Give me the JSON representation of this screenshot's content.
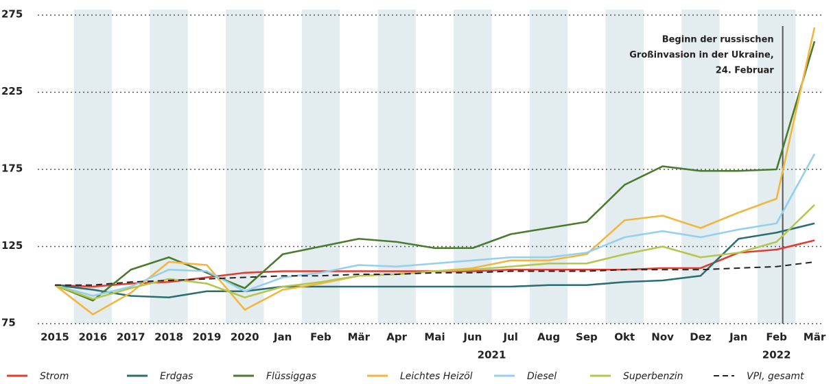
{
  "chart_data": {
    "type": "line",
    "categories": [
      "2015",
      "2016",
      "2017",
      "2018",
      "2019",
      "2020",
      "Jan",
      "Feb",
      "Mär",
      "Apr",
      "Mai",
      "Jun",
      "Jul",
      "Aug",
      "Sep",
      "Okt",
      "Nov",
      "Dez",
      "Jan",
      "Feb",
      "Mär"
    ],
    "year_labels": [
      "2021",
      "2022"
    ],
    "ylim": [
      75,
      275
    ],
    "yticks": [
      75,
      125,
      175,
      225,
      275
    ],
    "grid": true,
    "annotation": {
      "category": "Feb",
      "lines": [
        "Beginn der russischen",
        "Großinvasion in der Ukraine,",
        "24. Februar"
      ]
    },
    "series": [
      {
        "name": "Strom",
        "color": "#e03c31",
        "dashed": false,
        "values": [
          100,
          99,
          101,
          102,
          105,
          108,
          109,
          109,
          109,
          109,
          109,
          109,
          110,
          110,
          110,
          110,
          111,
          111,
          121,
          123,
          129
        ]
      },
      {
        "name": "Erdgas",
        "color": "#2a6e72",
        "dashed": false,
        "values": [
          100,
          97,
          93,
          92,
          96,
          96,
          99,
          99,
          99,
          99,
          99,
          99,
          99,
          100,
          100,
          102,
          103,
          106,
          130,
          134,
          140
        ]
      },
      {
        "name": "Flüssiggas",
        "color": "#4a7a2e",
        "dashed": false,
        "values": [
          100,
          90,
          110,
          118,
          108,
          98,
          120,
          125,
          130,
          128,
          124,
          124,
          133,
          137,
          141,
          165,
          177,
          174,
          174,
          175,
          258
        ]
      },
      {
        "name": "Leichtes Heizöl",
        "color": "#f2b63c",
        "dashed": false,
        "values": [
          100,
          81,
          95,
          115,
          113,
          84,
          97,
          101,
          106,
          107,
          109,
          111,
          116,
          116,
          120,
          142,
          145,
          137,
          147,
          156,
          267
        ]
      },
      {
        "name": "Diesel",
        "color": "#94cfee",
        "dashed": false,
        "values": [
          100,
          93,
          99,
          110,
          109,
          96,
          105,
          108,
          113,
          112,
          114,
          116,
          118,
          118,
          121,
          131,
          135,
          131,
          136,
          140,
          185
        ]
      },
      {
        "name": "Superbenzin",
        "color": "#b5c64a",
        "dashed": false,
        "values": [
          100,
          91,
          98,
          104,
          101,
          92,
          99,
          102,
          106,
          107,
          109,
          110,
          112,
          114,
          114,
          120,
          125,
          118,
          121,
          128,
          152
        ]
      },
      {
        "name": "VPI, gesamt",
        "color": "#222222",
        "dashed": true,
        "values": [
          100,
          100,
          102,
          103,
          104,
          105,
          106,
          106,
          107,
          107,
          108,
          108,
          109,
          109,
          109,
          110,
          110,
          110,
          111,
          112,
          115
        ]
      }
    ]
  }
}
